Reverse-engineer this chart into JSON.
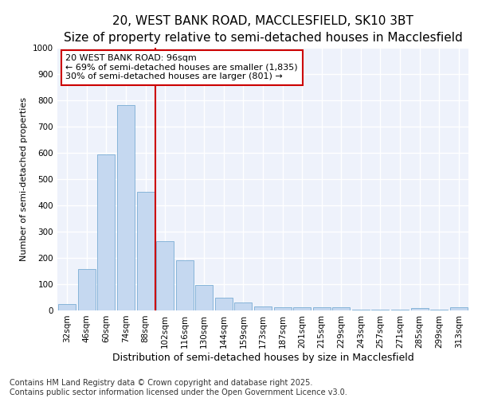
{
  "title": "20, WEST BANK ROAD, MACCLESFIELD, SK10 3BT",
  "subtitle": "Size of property relative to semi-detached houses in Macclesfield",
  "xlabel": "Distribution of semi-detached houses by size in Macclesfield",
  "ylabel": "Number of semi-detached properties",
  "categories": [
    "32sqm",
    "46sqm",
    "60sqm",
    "74sqm",
    "88sqm",
    "102sqm",
    "116sqm",
    "130sqm",
    "144sqm",
    "159sqm",
    "173sqm",
    "187sqm",
    "201sqm",
    "215sqm",
    "229sqm",
    "243sqm",
    "257sqm",
    "271sqm",
    "285sqm",
    "299sqm",
    "313sqm"
  ],
  "values": [
    25,
    157,
    594,
    783,
    453,
    264,
    191,
    98,
    47,
    30,
    16,
    13,
    13,
    12,
    12,
    2,
    2,
    2,
    8,
    2,
    12
  ],
  "bar_color": "#c5d8f0",
  "bar_edge_color": "#7aadd4",
  "vline_x": 4.5,
  "annotation_title": "20 WEST BANK ROAD: 96sqm",
  "annotation_line1": "← 69% of semi-detached houses are smaller (1,835)",
  "annotation_line2": "30% of semi-detached houses are larger (801) →",
  "annotation_box_color": "#ffffff",
  "annotation_box_edge": "#cc0000",
  "vline_color": "#cc0000",
  "ylim": [
    0,
    1000
  ],
  "yticks": [
    0,
    100,
    200,
    300,
    400,
    500,
    600,
    700,
    800,
    900,
    1000
  ],
  "footer": "Contains HM Land Registry data © Crown copyright and database right 2025.\nContains public sector information licensed under the Open Government Licence v3.0.",
  "bg_color": "#eef2fb",
  "title_fontsize": 11,
  "subtitle_fontsize": 9.5,
  "xlabel_fontsize": 9,
  "ylabel_fontsize": 8,
  "tick_fontsize": 7.5,
  "annotation_fontsize": 8,
  "footer_fontsize": 7
}
